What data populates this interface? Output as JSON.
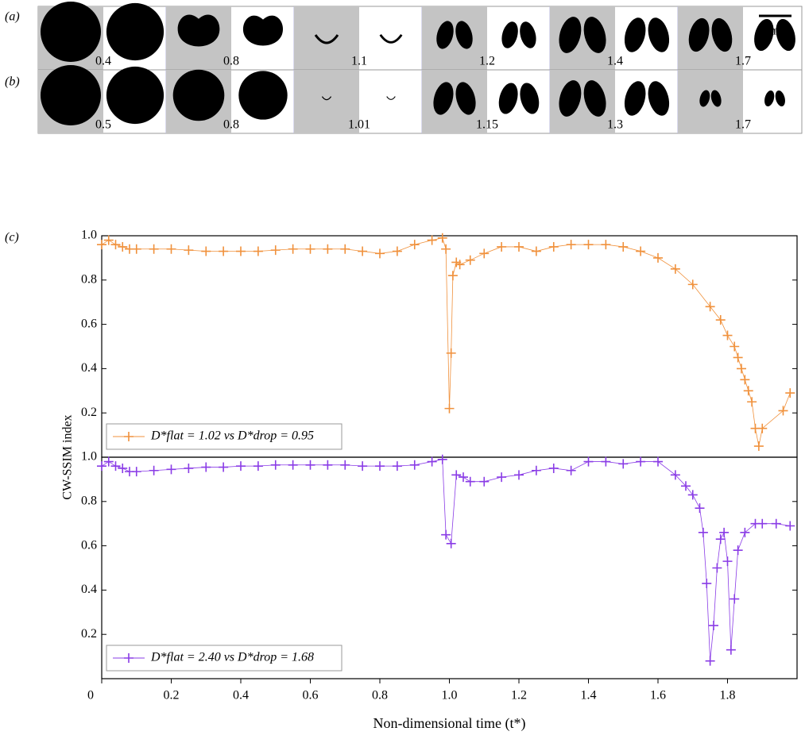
{
  "panels": {
    "row_labels": [
      "(a)",
      "(b)"
    ],
    "rows": [
      [
        "0.4",
        "0.8",
        "1.1",
        "1.2",
        "1.4",
        "1.7"
      ],
      [
        "0.5",
        "0.8",
        "1.01",
        "1.15",
        "1.3",
        "1.7"
      ]
    ],
    "scale_bar": "1 mm"
  },
  "chart_label": "(c)",
  "chart_data": [
    {
      "type": "line",
      "ylabel": "CW-SSIM index",
      "xlim": [
        0,
        2
      ],
      "ylim": [
        0,
        1
      ],
      "yticks": [
        0.2,
        0.4,
        0.6,
        0.8,
        {
          "value": 1,
          "label": "1.0"
        }
      ],
      "legend": "lower left",
      "series": [
        {
          "name": "D*flat = 1.02 vs D*drop = 0.95",
          "color": "#f0913c",
          "x": [
            0,
            0.02,
            0.04,
            0.06,
            0.08,
            0.1,
            0.15,
            0.2,
            0.25,
            0.3,
            0.35,
            0.4,
            0.45,
            0.5,
            0.55,
            0.6,
            0.65,
            0.7,
            0.75,
            0.8,
            0.85,
            0.9,
            0.95,
            0.98,
            0.99,
            1.0,
            1.005,
            1.01,
            1.02,
            1.03,
            1.06,
            1.1,
            1.15,
            1.2,
            1.25,
            1.3,
            1.35,
            1.4,
            1.45,
            1.5,
            1.55,
            1.6,
            1.65,
            1.7,
            1.75,
            1.78,
            1.8,
            1.82,
            1.83,
            1.84,
            1.85,
            1.86,
            1.87,
            1.88,
            1.89,
            1.9,
            1.96,
            1.98
          ],
          "values": [
            0.96,
            0.98,
            0.96,
            0.95,
            0.94,
            0.94,
            0.94,
            0.94,
            0.935,
            0.93,
            0.93,
            0.93,
            0.93,
            0.935,
            0.94,
            0.94,
            0.94,
            0.94,
            0.93,
            0.92,
            0.93,
            0.96,
            0.98,
            0.99,
            0.94,
            0.22,
            0.47,
            0.82,
            0.88,
            0.87,
            0.89,
            0.92,
            0.95,
            0.95,
            0.93,
            0.95,
            0.96,
            0.96,
            0.96,
            0.95,
            0.93,
            0.9,
            0.85,
            0.78,
            0.68,
            0.62,
            0.55,
            0.5,
            0.45,
            0.4,
            0.35,
            0.3,
            0.25,
            0.13,
            0.05,
            0.13,
            0.21,
            0.29
          ]
        }
      ]
    },
    {
      "type": "line",
      "xlabel": "Non-dimensional time (t*)",
      "xlim": [
        0,
        2
      ],
      "ylim": [
        0,
        1
      ],
      "xticks": [
        0,
        0.2,
        0.4,
        0.6,
        0.8,
        {
          "value": 1,
          "label": "1.0"
        },
        1.2,
        1.4,
        1.6,
        1.8
      ],
      "yticks": [
        0.2,
        0.4,
        0.6,
        0.8,
        {
          "value": 1,
          "label": "1.0"
        }
      ],
      "legend": "lower left",
      "series": [
        {
          "name": "D*flat = 2.40 vs D*drop = 1.68",
          "color": "#8a3ce6",
          "x": [
            0,
            0.02,
            0.04,
            0.06,
            0.08,
            0.1,
            0.15,
            0.2,
            0.25,
            0.3,
            0.35,
            0.4,
            0.45,
            0.5,
            0.55,
            0.6,
            0.65,
            0.7,
            0.75,
            0.8,
            0.85,
            0.9,
            0.95,
            0.98,
            0.99,
            1.005,
            1.02,
            1.04,
            1.06,
            1.1,
            1.15,
            1.2,
            1.25,
            1.3,
            1.35,
            1.4,
            1.45,
            1.5,
            1.55,
            1.6,
            1.65,
            1.68,
            1.7,
            1.72,
            1.73,
            1.74,
            1.75,
            1.76,
            1.77,
            1.78,
            1.79,
            1.8,
            1.81,
            1.82,
            1.83,
            1.85,
            1.88,
            1.9,
            1.94,
            1.98
          ],
          "values": [
            0.96,
            0.98,
            0.96,
            0.95,
            0.935,
            0.935,
            0.94,
            0.945,
            0.95,
            0.955,
            0.955,
            0.96,
            0.96,
            0.965,
            0.965,
            0.965,
            0.965,
            0.965,
            0.96,
            0.96,
            0.96,
            0.965,
            0.98,
            0.99,
            0.65,
            0.61,
            0.92,
            0.91,
            0.89,
            0.89,
            0.91,
            0.92,
            0.94,
            0.95,
            0.94,
            0.98,
            0.98,
            0.97,
            0.98,
            0.98,
            0.92,
            0.87,
            0.83,
            0.77,
            0.66,
            0.43,
            0.08,
            0.24,
            0.5,
            0.63,
            0.66,
            0.53,
            0.13,
            0.36,
            0.58,
            0.66,
            0.7,
            0.7,
            0.7,
            0.69
          ]
        }
      ]
    }
  ]
}
